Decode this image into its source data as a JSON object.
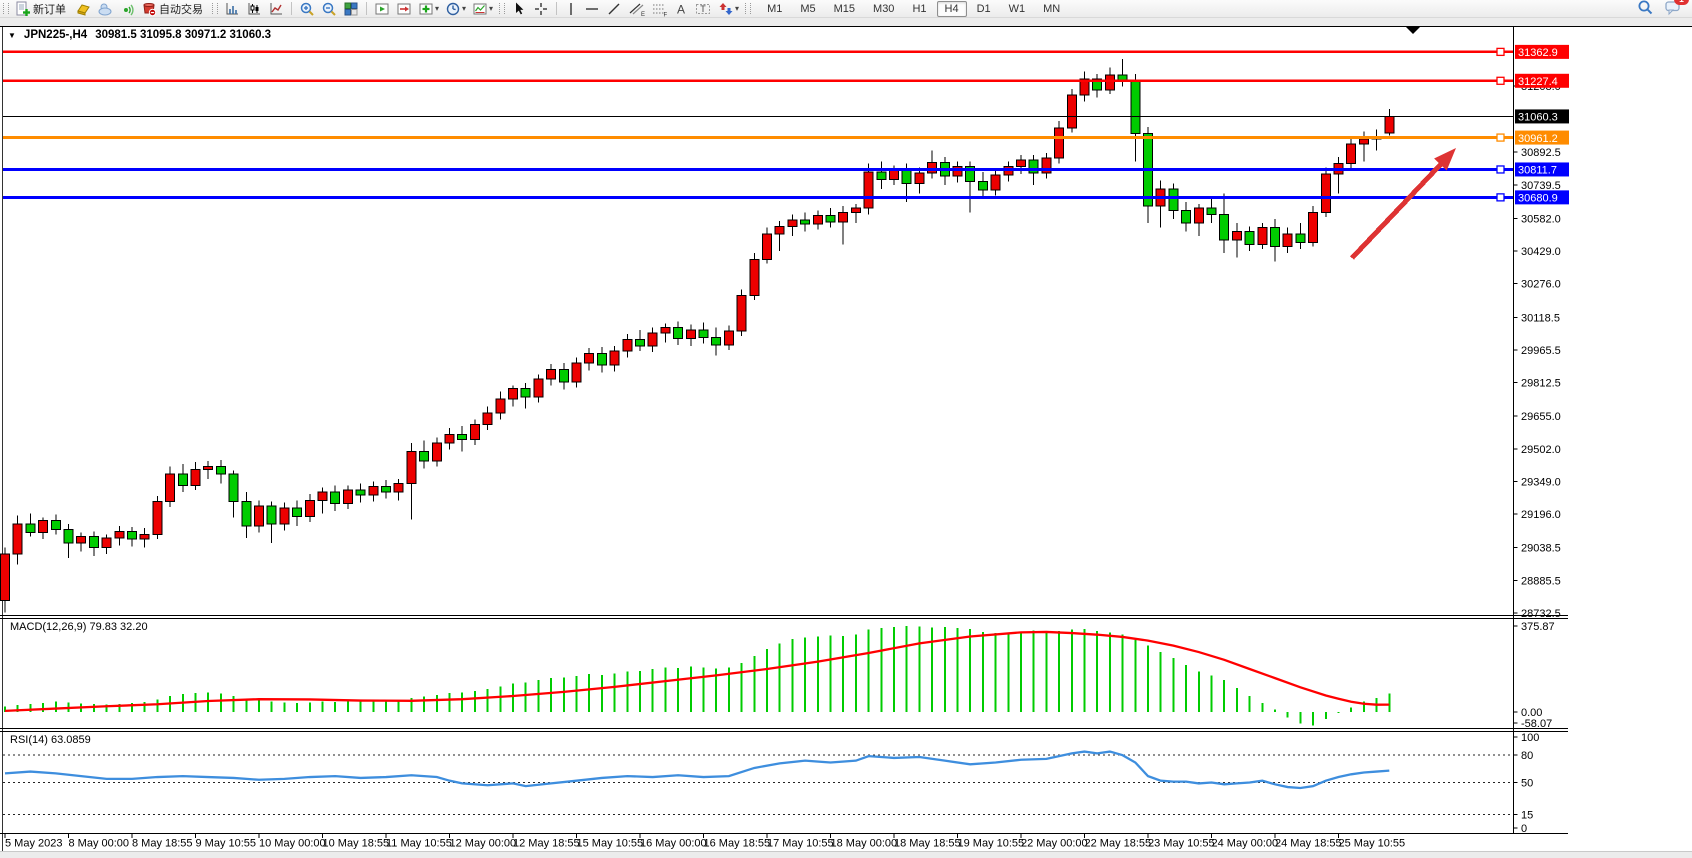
{
  "toolbar": {
    "new_order_label": "新订单",
    "autotrading_label": "自动交易",
    "timeframes": [
      "M1",
      "M5",
      "M15",
      "M30",
      "H1",
      "H4",
      "D1",
      "W1",
      "MN"
    ],
    "active_timeframe": "H4",
    "notification_badge": "1",
    "icons": [
      "new-order",
      "metaquotes",
      "community-cloud",
      "signals",
      "autotrading",
      "bar-chart",
      "candlestick-chart",
      "line-chart",
      "zoom-in",
      "zoom-out",
      "tile-windows",
      "auto-scroll",
      "chart-shift",
      "add-indicator",
      "periods-clock",
      "templates",
      "cursor",
      "crosshair",
      "vertical-line",
      "horizontal-line",
      "trendline",
      "fibonacci",
      "channels",
      "text",
      "text-label",
      "arrow-shapes",
      "search",
      "chat"
    ]
  },
  "chart": {
    "symbol_label": "JPN225-,H4",
    "ohlc_label": "30981.5 31095.8 30971.2 31060.3",
    "levels": [
      {
        "label": "31362.9",
        "price": 31362.9,
        "color": "#FF0000",
        "width": 2.5,
        "current": false
      },
      {
        "label": "31227.4",
        "price": 31227.4,
        "color": "#FF0000",
        "width": 2.5,
        "current": false
      },
      {
        "label": "31060.3",
        "price": 31060.3,
        "color": "#000000",
        "width": 1,
        "current": true
      },
      {
        "label": "30961.2",
        "price": 30961.2,
        "color": "#FF8C00",
        "width": 3,
        "current": false
      },
      {
        "label": "30811.7",
        "price": 30811.7,
        "color": "#0000FF",
        "width": 3,
        "current": false
      },
      {
        "label": "30680.9",
        "price": 30680.9,
        "color": "#0000FF",
        "width": 3,
        "current": false
      }
    ],
    "price_ticks": [
      "31203.0",
      "30892.5",
      "30739.5",
      "30582.0",
      "30429.0",
      "30276.0",
      "30118.5",
      "29965.5",
      "29812.5",
      "29655.0",
      "29502.0",
      "29349.0",
      "29196.0",
      "29038.5",
      "28885.5",
      "28732.5"
    ],
    "time_labels": [
      "5 May 2023",
      "8 May 00:00",
      "8 May 18:55",
      "9 May 10:55",
      "10 May 00:00",
      "10 May 18:55",
      "11 May 10:55",
      "12 May 00:00",
      "12 May 18:55",
      "15 May 10:55",
      "16 May 00:00",
      "16 May 18:55",
      "17 May 10:55",
      "18 May 00:00",
      "18 May 18:55",
      "19 May 10:55",
      "22 May 00:00",
      "22 May 18:55",
      "23 May 10:55",
      "24 May 00:00",
      "24 May 18:55",
      "25 May 10:55"
    ],
    "colors": {
      "up_candle": "#ED0000",
      "down_candle": "#00CC00",
      "wick": "#000000",
      "macd_histogram": "#00CC00",
      "macd_signal": "#FF0000",
      "rsi_line": "#3E8EDE",
      "arrow": "#DE3333"
    }
  },
  "chart_data": {
    "type": "candlestick",
    "symbol": "JPN225-",
    "timeframe": "H4",
    "title": "JPN225-,H4 30981.5 31095.8 30971.2 31060.3",
    "last_ohlc": {
      "open": 30981.5,
      "high": 31095.8,
      "low": 30971.2,
      "close": 31060.3
    },
    "up_means": "red (Chinese convention: red = up, green = down)",
    "ylim": [
      28732.5,
      31479.6
    ],
    "candles": [
      [
        28790,
        29040,
        28735,
        29010
      ],
      [
        29010,
        29190,
        28960,
        29150
      ],
      [
        29150,
        29200,
        29090,
        29110
      ],
      [
        29110,
        29180,
        29080,
        29165
      ],
      [
        29165,
        29195,
        29100,
        29125
      ],
      [
        29125,
        29150,
        28990,
        29060
      ],
      [
        29060,
        29110,
        29020,
        29090
      ],
      [
        29090,
        29115,
        29000,
        29040
      ],
      [
        29040,
        29100,
        29010,
        29085
      ],
      [
        29085,
        29140,
        29050,
        29115
      ],
      [
        29115,
        29135,
        29045,
        29080
      ],
      [
        29080,
        29130,
        29040,
        29100
      ],
      [
        29100,
        29280,
        29080,
        29255
      ],
      [
        29255,
        29420,
        29230,
        29385
      ],
      [
        29385,
        29430,
        29300,
        29330
      ],
      [
        29330,
        29440,
        29310,
        29405
      ],
      [
        29405,
        29445,
        29360,
        29420
      ],
      [
        29420,
        29450,
        29340,
        29385
      ],
      [
        29385,
        29400,
        29180,
        29255
      ],
      [
        29255,
        29300,
        29085,
        29140
      ],
      [
        29140,
        29260,
        29110,
        29235
      ],
      [
        29235,
        29255,
        29060,
        29150
      ],
      [
        29150,
        29250,
        29120,
        29225
      ],
      [
        29225,
        29260,
        29140,
        29185
      ],
      [
        29185,
        29290,
        29160,
        29260
      ],
      [
        29260,
        29320,
        29200,
        29300
      ],
      [
        29300,
        29330,
        29210,
        29245
      ],
      [
        29245,
        29330,
        29220,
        29310
      ],
      [
        29310,
        29340,
        29250,
        29285
      ],
      [
        29285,
        29350,
        29255,
        29325
      ],
      [
        29325,
        29355,
        29270,
        29300
      ],
      [
        29300,
        29360,
        29260,
        29340
      ],
      [
        29340,
        29530,
        29170,
        29490
      ],
      [
        29490,
        29540,
        29410,
        29445
      ],
      [
        29445,
        29555,
        29420,
        29530
      ],
      [
        29530,
        29600,
        29500,
        29570
      ],
      [
        29570,
        29610,
        29490,
        29545
      ],
      [
        29545,
        29640,
        29520,
        29615
      ],
      [
        29615,
        29700,
        29590,
        29670
      ],
      [
        29670,
        29770,
        29640,
        29735
      ],
      [
        29735,
        29800,
        29700,
        29785
      ],
      [
        29785,
        29810,
        29690,
        29745
      ],
      [
        29745,
        29850,
        29720,
        29830
      ],
      [
        29830,
        29900,
        29800,
        29875
      ],
      [
        29875,
        29905,
        29780,
        29815
      ],
      [
        29815,
        29930,
        29790,
        29905
      ],
      [
        29905,
        29975,
        29870,
        29950
      ],
      [
        29950,
        29980,
        29860,
        29895
      ],
      [
        29895,
        29985,
        29865,
        29960
      ],
      [
        29960,
        30040,
        29930,
        30015
      ],
      [
        30015,
        30060,
        29960,
        29985
      ],
      [
        29985,
        30070,
        29955,
        30045
      ],
      [
        30045,
        30090,
        30000,
        30070
      ],
      [
        30070,
        30100,
        29990,
        30020
      ],
      [
        30020,
        30085,
        29985,
        30060
      ],
      [
        30060,
        30095,
        29995,
        30025
      ],
      [
        30025,
        30070,
        29940,
        29990
      ],
      [
        29990,
        30080,
        29965,
        30055
      ],
      [
        30055,
        30250,
        30030,
        30220
      ],
      [
        30220,
        30420,
        30200,
        30390
      ],
      [
        30390,
        30540,
        30370,
        30510
      ],
      [
        30510,
        30570,
        30430,
        30545
      ],
      [
        30545,
        30600,
        30500,
        30575
      ],
      [
        30575,
        30610,
        30520,
        30555
      ],
      [
        30555,
        30620,
        30530,
        30595
      ],
      [
        30595,
        30630,
        30540,
        30565
      ],
      [
        30565,
        30640,
        30460,
        30610
      ],
      [
        30610,
        30650,
        30560,
        30630
      ],
      [
        30630,
        30840,
        30600,
        30800
      ],
      [
        30800,
        30850,
        30720,
        30765
      ],
      [
        30765,
        30830,
        30740,
        30810
      ],
      [
        30810,
        30840,
        30660,
        30745
      ],
      [
        30745,
        30820,
        30700,
        30795
      ],
      [
        30795,
        30900,
        30770,
        30845
      ],
      [
        30845,
        30870,
        30740,
        30780
      ],
      [
        30780,
        30850,
        30750,
        30825
      ],
      [
        30825,
        30850,
        30610,
        30755
      ],
      [
        30755,
        30800,
        30680,
        30715
      ],
      [
        30715,
        30805,
        30690,
        30785
      ],
      [
        30785,
        30850,
        30755,
        30825
      ],
      [
        30825,
        30880,
        30790,
        30855
      ],
      [
        30855,
        30880,
        30740,
        30795
      ],
      [
        30795,
        30890,
        30770,
        30865
      ],
      [
        30865,
        31040,
        30840,
        31005
      ],
      [
        31005,
        31190,
        30985,
        31160
      ],
      [
        31160,
        31270,
        31130,
        31235
      ],
      [
        31235,
        31260,
        31150,
        31185
      ],
      [
        31185,
        31290,
        31165,
        31255
      ],
      [
        31255,
        31330,
        31200,
        31225
      ],
      [
        31225,
        31260,
        30850,
        30980
      ],
      [
        30980,
        31010,
        30560,
        30640
      ],
      [
        30640,
        30760,
        30540,
        30720
      ],
      [
        30720,
        30745,
        30580,
        30620
      ],
      [
        30620,
        30660,
        30520,
        30560
      ],
      [
        30560,
        30650,
        30500,
        30630
      ],
      [
        30630,
        30680,
        30560,
        30600
      ],
      [
        30600,
        30700,
        30420,
        30480
      ],
      [
        30480,
        30560,
        30400,
        30520
      ],
      [
        30520,
        30545,
        30430,
        30460
      ],
      [
        30460,
        30560,
        30440,
        30540
      ],
      [
        30540,
        30580,
        30380,
        30450
      ],
      [
        30450,
        30540,
        30420,
        30510
      ],
      [
        30510,
        30560,
        30440,
        30470
      ],
      [
        30470,
        30640,
        30450,
        30610
      ],
      [
        30610,
        30820,
        30590,
        30790
      ],
      [
        30790,
        30870,
        30700,
        30840
      ],
      [
        30840,
        30960,
        30810,
        30930
      ],
      [
        30930,
        30990,
        30850,
        30955
      ],
      [
        30955,
        31000,
        30900,
        30965
      ],
      [
        30981.5,
        31095.8,
        30971.2,
        31060.3
      ]
    ],
    "macd": {
      "label": "MACD(12,26,9) 79.83 32.20",
      "params": "12,26,9",
      "value": 79.83,
      "signal_value": 32.2,
      "scale": [
        375.87,
        0.0,
        -58.07
      ],
      "scale_labels": [
        "375.87",
        "0.00",
        "-58.07"
      ],
      "histogram": [
        25,
        30,
        35,
        40,
        45,
        42,
        38,
        35,
        33,
        36,
        40,
        44,
        55,
        70,
        78,
        82,
        85,
        80,
        70,
        58,
        52,
        46,
        42,
        40,
        42,
        45,
        44,
        46,
        45,
        47,
        45,
        48,
        62,
        68,
        75,
        82,
        86,
        92,
        100,
        112,
        124,
        130,
        140,
        148,
        150,
        158,
        165,
        162,
        168,
        178,
        180,
        188,
        195,
        192,
        198,
        194,
        190,
        195,
        215,
        245,
        275,
        300,
        318,
        325,
        330,
        335,
        332,
        338,
        360,
        368,
        372,
        375.87,
        374,
        370,
        372,
        368,
        362,
        350,
        345,
        348,
        352,
        356,
        350,
        355,
        360,
        362,
        355,
        348,
        338,
        315,
        290,
        262,
        235,
        205,
        178,
        160,
        140,
        105,
        70,
        40,
        10,
        -25,
        -50,
        -58.07,
        -30,
        -5,
        20,
        45,
        62,
        79.83
      ],
      "signal": [
        [
          0,
          5
        ],
        [
          4,
          15
        ],
        [
          8,
          25
        ],
        [
          12,
          34
        ],
        [
          16,
          48
        ],
        [
          20,
          56
        ],
        [
          24,
          55
        ],
        [
          28,
          50
        ],
        [
          32,
          49
        ],
        [
          36,
          56
        ],
        [
          40,
          70
        ],
        [
          44,
          88
        ],
        [
          48,
          110
        ],
        [
          52,
          135
        ],
        [
          56,
          160
        ],
        [
          60,
          188
        ],
        [
          64,
          220
        ],
        [
          68,
          258
        ],
        [
          72,
          300
        ],
        [
          76,
          330
        ],
        [
          80,
          348
        ],
        [
          82,
          350
        ],
        [
          84,
          345
        ],
        [
          86,
          338
        ],
        [
          88,
          328
        ],
        [
          90,
          312
        ],
        [
          92,
          290
        ],
        [
          94,
          262
        ],
        [
          96,
          228
        ],
        [
          98,
          188
        ],
        [
          100,
          148
        ],
        [
          102,
          108
        ],
        [
          104,
          72
        ],
        [
          105,
          58
        ],
        [
          106,
          45
        ],
        [
          107,
          36
        ],
        [
          108,
          32
        ],
        [
          109,
          32.2
        ]
      ]
    },
    "rsi": {
      "label": "RSI(14) 63.0859",
      "period": 14,
      "value": 63.0859,
      "levels": [
        80,
        50,
        15
      ],
      "scale_labels": [
        "100",
        "80",
        "50",
        "15",
        "0"
      ],
      "points": [
        [
          0,
          60
        ],
        [
          2,
          62
        ],
        [
          4,
          60
        ],
        [
          6,
          57
        ],
        [
          8,
          54
        ],
        [
          10,
          54
        ],
        [
          12,
          56
        ],
        [
          14,
          57
        ],
        [
          16,
          56
        ],
        [
          18,
          55
        ],
        [
          20,
          53
        ],
        [
          22,
          54
        ],
        [
          24,
          56
        ],
        [
          26,
          57
        ],
        [
          28,
          55
        ],
        [
          30,
          56
        ],
        [
          32,
          58
        ],
        [
          34,
          56
        ],
        [
          35,
          52
        ],
        [
          36,
          49
        ],
        [
          38,
          47
        ],
        [
          40,
          49
        ],
        [
          41,
          46
        ],
        [
          43,
          49
        ],
        [
          45,
          52
        ],
        [
          47,
          55
        ],
        [
          49,
          57
        ],
        [
          51,
          56
        ],
        [
          53,
          58
        ],
        [
          55,
          56
        ],
        [
          57,
          57
        ],
        [
          59,
          66
        ],
        [
          61,
          71
        ],
        [
          63,
          74
        ],
        [
          65,
          72
        ],
        [
          67,
          74
        ],
        [
          68,
          79
        ],
        [
          70,
          77
        ],
        [
          72,
          78
        ],
        [
          74,
          74
        ],
        [
          76,
          70
        ],
        [
          78,
          72
        ],
        [
          80,
          75
        ],
        [
          82,
          76
        ],
        [
          84,
          82
        ],
        [
          85,
          84
        ],
        [
          86,
          82
        ],
        [
          87,
          84
        ],
        [
          88,
          80
        ],
        [
          89,
          72
        ],
        [
          90,
          57
        ],
        [
          91,
          52
        ],
        [
          92,
          51
        ],
        [
          93,
          51
        ],
        [
          94,
          49
        ],
        [
          95,
          50
        ],
        [
          96,
          48
        ],
        [
          97,
          49
        ],
        [
          98,
          50
        ],
        [
          99,
          52
        ],
        [
          100,
          48
        ],
        [
          101,
          45
        ],
        [
          102,
          44
        ],
        [
          103,
          46
        ],
        [
          104,
          52
        ],
        [
          105,
          56
        ],
        [
          106,
          59
        ],
        [
          107,
          61
        ],
        [
          108,
          62
        ],
        [
          109,
          63.09
        ]
      ]
    }
  }
}
